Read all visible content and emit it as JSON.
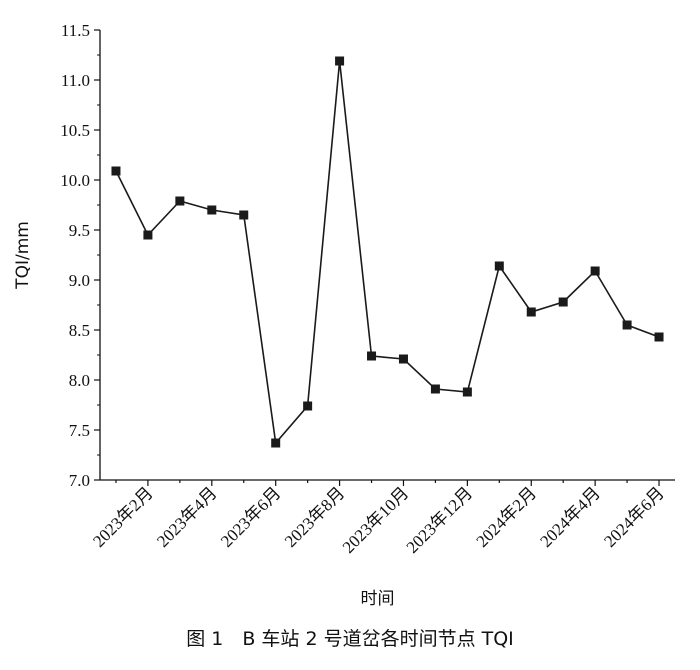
{
  "chart_data": {
    "type": "line",
    "title": "图 1　B 车站 2 号道岔各时间节点 TQI",
    "xlabel": "时间",
    "ylabel": "TQI/mm",
    "ylim": [
      7.0,
      11.5
    ],
    "yticks": [
      7.0,
      7.5,
      8.0,
      8.5,
      9.0,
      9.5,
      10.0,
      10.5,
      11.0,
      11.5
    ],
    "ytick_labels": [
      "7.0",
      "7.5",
      "8.0",
      "8.5",
      "9.0",
      "9.5",
      "10.0",
      "10.5",
      "11.0",
      "11.5"
    ],
    "xtick_positions": [
      2,
      4,
      6,
      8,
      10,
      12,
      14,
      16,
      18
    ],
    "xtick_labels": [
      "2023年2月",
      "2023年4月",
      "2023年6月",
      "2023年8月",
      "2023年10月",
      "2023年12月",
      "2024年2月",
      "2024年4月",
      "2024年6月"
    ],
    "grid": false,
    "series": [
      {
        "marker": "square",
        "color": "#1a1a1a",
        "x": [
          1,
          2,
          3,
          4,
          5,
          6,
          7,
          8,
          9,
          10,
          11,
          12,
          13,
          14,
          15,
          16,
          17,
          18
        ],
        "values": [
          10.09,
          9.45,
          9.79,
          9.7,
          9.65,
          7.37,
          7.74,
          11.19,
          8.24,
          8.21,
          7.91,
          7.88,
          9.14,
          8.68,
          8.78,
          9.09,
          8.55,
          8.43
        ]
      }
    ]
  }
}
